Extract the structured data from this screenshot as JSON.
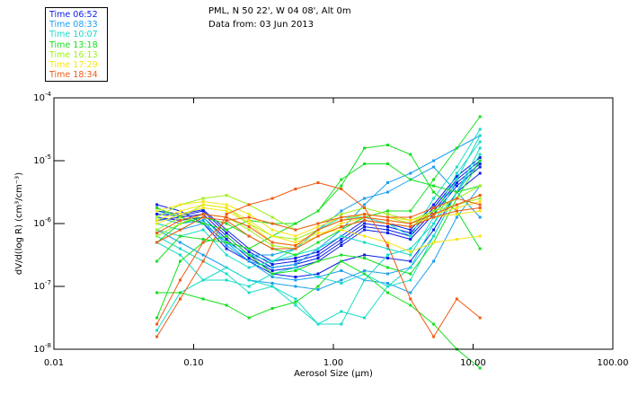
{
  "header": {
    "location": "PML, N 50 22', W 04 08', Alt 0m",
    "date": "Data from: 03 Jun 2013"
  },
  "chart_data": {
    "type": "line",
    "title": "PML, N 50 22', W 04 08', Alt 0m",
    "subtitle": "Data from: 03 Jun 2013",
    "xlabel": "Aerosol Size (μm)",
    "ylabel": "dV/d(log R) (cm³/cm⁻³)",
    "xscale": "log",
    "yscale": "log",
    "xlim": [
      0.01,
      100
    ],
    "ylim": [
      1e-08,
      0.0001
    ],
    "x_ticks": [
      {
        "value": 0.01,
        "label": "0.01"
      },
      {
        "value": 0.1,
        "label": "0.10"
      },
      {
        "value": 1,
        "label": "1.00"
      },
      {
        "value": 10,
        "label": "10.00"
      },
      {
        "value": 100,
        "label": "100.00"
      }
    ],
    "y_ticks": [
      {
        "value": 0.0001,
        "base": "10",
        "exp": "-4"
      },
      {
        "value": 1e-05,
        "base": "10",
        "exp": "-5"
      },
      {
        "value": 1e-06,
        "base": "10",
        "exp": "-6"
      },
      {
        "value": 1e-07,
        "base": "10",
        "exp": "-7"
      },
      {
        "value": 1e-08,
        "base": "10",
        "exp": "-8"
      }
    ],
    "legend_position": "top-left",
    "x": [
      0.0546,
      0.0801,
      0.117,
      0.172,
      0.249,
      0.366,
      0.536,
      0.778,
      1.14,
      1.67,
      2.45,
      3.56,
      5.22,
      7.65,
      11.2
    ],
    "groups": [
      {
        "name": "Time 06:52",
        "color": "#0a1ee6",
        "series": [
          [
            -5.95,
            -5.9,
            -5.85,
            -6.2,
            -6.5,
            -6.7,
            -6.65,
            -6.55,
            -6.3,
            -6.05,
            -6.1,
            -6.2,
            -5.8,
            -5.35,
            -5.05
          ],
          [
            -5.85,
            -5.88,
            -5.8,
            -6.15,
            -6.45,
            -6.65,
            -6.6,
            -6.5,
            -6.25,
            -6.0,
            -6.05,
            -6.15,
            -5.75,
            -5.3,
            -5.0
          ],
          [
            -5.9,
            -5.95,
            -5.9,
            -6.25,
            -6.55,
            -6.75,
            -6.7,
            -6.6,
            -6.35,
            -6.1,
            -6.15,
            -6.25,
            -5.85,
            -5.4,
            -5.1
          ],
          [
            -5.8,
            -5.85,
            -5.78,
            -6.1,
            -6.4,
            -6.6,
            -6.55,
            -6.45,
            -6.2,
            -5.95,
            -6.0,
            -6.1,
            -5.7,
            -5.25,
            -4.95
          ],
          [
            -5.7,
            -5.8,
            -6.0,
            -6.4,
            -6.6,
            -6.8,
            -6.85,
            -6.8,
            -6.6,
            -6.5,
            -6.55,
            -6.6,
            -6.1,
            -5.5,
            -5.2
          ]
        ]
      },
      {
        "name": "Time 08:33",
        "color": "#1aa0f0",
        "series": [
          [
            -6.0,
            -6.1,
            -6.0,
            -6.3,
            -6.6,
            -6.85,
            -6.9,
            -6.85,
            -6.75,
            -6.9,
            -6.95,
            -7.1,
            -6.6,
            -5.9,
            -5.4
          ],
          [
            -5.8,
            -5.9,
            -6.0,
            -6.3,
            -6.5,
            -6.5,
            -6.4,
            -6.1,
            -5.8,
            -5.6,
            -5.5,
            -5.3,
            -5.1,
            -5.5,
            -5.9
          ],
          [
            -6.1,
            -6.3,
            -6.5,
            -6.7,
            -6.9,
            -6.95,
            -7.0,
            -7.05,
            -6.9,
            -6.75,
            -6.8,
            -6.7,
            -6.2,
            -5.5,
            -5.0
          ],
          [
            -5.9,
            -6.0,
            -5.95,
            -6.35,
            -6.6,
            -6.7,
            -6.65,
            -6.4,
            -6.1,
            -5.7,
            -5.35,
            -5.2,
            -5.0,
            -4.8,
            -4.6
          ]
        ]
      },
      {
        "name": "Time 10:07",
        "color": "#18dcc8",
        "series": [
          [
            -7.7,
            -7.1,
            -6.9,
            -6.7,
            -6.9,
            -7.0,
            -7.2,
            -7.6,
            -7.6,
            -6.9,
            -6.5,
            -6.4,
            -6.0,
            -5.5,
            -4.8
          ],
          [
            -6.2,
            -6.4,
            -6.6,
            -6.8,
            -7.1,
            -7.0,
            -7.3,
            -7.6,
            -7.4,
            -7.5,
            -7.0,
            -6.9,
            -6.2,
            -5.5,
            -4.9
          ],
          [
            -6.1,
            -6.2,
            -6.1,
            -6.5,
            -6.7,
            -6.6,
            -6.5,
            -6.4,
            -6.2,
            -6.3,
            -6.4,
            -6.5,
            -5.9,
            -5.2,
            -4.7
          ],
          [
            -6.3,
            -6.5,
            -6.9,
            -6.9,
            -7.0,
            -6.8,
            -6.7,
            -6.85,
            -6.95,
            -6.8,
            -7.0,
            -6.7,
            -6.0,
            -5.3,
            -4.6
          ],
          [
            -6.0,
            -6.1,
            -5.9,
            -6.3,
            -6.5,
            -6.6,
            -6.4,
            -6.1,
            -5.9,
            -5.9,
            -6.0,
            -6.2,
            -5.6,
            -5.1,
            -4.5
          ]
        ]
      },
      {
        "name": "Time 13:18",
        "color": "#14e01e",
        "series": [
          [
            -7.1,
            -7.1,
            -7.2,
            -7.3,
            -7.5,
            -7.35,
            -7.25,
            -7.0,
            -6.6,
            -6.8,
            -7.1,
            -7.3,
            -7.6,
            -8.0,
            -8.3
          ],
          [
            -7.5,
            -6.6,
            -6.3,
            -6.2,
            -6.5,
            -6.8,
            -6.75,
            -6.6,
            -6.5,
            -6.55,
            -6.7,
            -6.8,
            -6.3,
            -5.6,
            -5.0
          ],
          [
            -5.75,
            -5.9,
            -6.0,
            -6.1,
            -5.95,
            -6.0,
            -6.0,
            -5.8,
            -5.3,
            -5.05,
            -5.05,
            -5.3,
            -5.4,
            -5.5,
            -5.4
          ],
          [
            -6.6,
            -6.2,
            -6.25,
            -6.3,
            -6.4,
            -6.2,
            -6.0,
            -5.8,
            -5.4,
            -4.8,
            -4.75,
            -4.9,
            -5.5,
            -5.8,
            -6.4
          ],
          [
            -6.3,
            -6.0,
            -5.9,
            -6.0,
            -6.2,
            -6.4,
            -6.5,
            -6.3,
            -6.1,
            -5.9,
            -5.8,
            -5.8,
            -5.3,
            -4.8,
            -4.3
          ]
        ]
      },
      {
        "name": "Time 16:13",
        "color": "#a0f01e",
        "series": [
          [
            -5.9,
            -5.7,
            -5.6,
            -5.55,
            -5.7,
            -5.9,
            -6.1,
            -6.0,
            -5.85,
            -5.75,
            -5.85,
            -5.95,
            -5.8,
            -5.6,
            -5.4
          ],
          [
            -6.1,
            -5.9,
            -5.7,
            -5.75,
            -6.0,
            -6.2,
            -6.25,
            -6.1,
            -5.95,
            -5.85,
            -5.9,
            -6.0,
            -5.8,
            -5.7,
            -5.6
          ],
          [
            -6.2,
            -6.0,
            -5.85,
            -5.9,
            -6.1,
            -6.35,
            -6.4,
            -6.2,
            -6.05,
            -5.95,
            -6.0,
            -6.05,
            -5.85,
            -5.7,
            -5.55
          ]
        ]
      },
      {
        "name": "Time 17:29",
        "color": "#f5e614",
        "series": [
          [
            -5.8,
            -5.7,
            -5.65,
            -5.7,
            -5.85,
            -6.1,
            -6.2,
            -6.05,
            -5.9,
            -5.85,
            -5.9,
            -5.95,
            -5.85,
            -5.75,
            -5.65
          ],
          [
            -6.0,
            -5.85,
            -5.75,
            -5.8,
            -6.0,
            -6.3,
            -6.35,
            -6.2,
            -6.0,
            -5.9,
            -5.95,
            -6.0,
            -5.9,
            -5.85,
            -5.8
          ],
          [
            -5.95,
            -5.8,
            -5.7,
            -5.75,
            -5.95,
            -6.2,
            -6.3,
            -6.15,
            -6.1,
            -6.2,
            -6.3,
            -6.45,
            -6.3,
            -6.25,
            -6.2
          ]
        ]
      },
      {
        "name": "Time 18:34",
        "color": "#f05a14",
        "series": [
          [
            -6.15,
            -5.95,
            -5.85,
            -5.9,
            -6.05,
            -6.3,
            -6.35,
            -6.1,
            -5.95,
            -5.9,
            -5.95,
            -6.0,
            -5.85,
            -5.7,
            -5.55
          ],
          [
            -7.8,
            -7.2,
            -6.6,
            -5.85,
            -5.7,
            -5.6,
            -5.45,
            -5.35,
            -5.45,
            -5.75,
            -6.35,
            -7.2,
            -7.8,
            -7.2,
            -7.5
          ],
          [
            -7.6,
            -6.9,
            -6.3,
            -5.95,
            -5.9,
            -6.0,
            -6.1,
            -6.0,
            -5.9,
            -5.85,
            -5.9,
            -5.9,
            -5.75,
            -5.6,
            -5.7
          ],
          [
            -6.3,
            -6.1,
            -5.9,
            -5.95,
            -6.2,
            -6.4,
            -6.4,
            -6.2,
            -6.05,
            -5.95,
            -6.0,
            -6.05,
            -5.9,
            -5.8,
            -5.75
          ]
        ]
      }
    ]
  }
}
